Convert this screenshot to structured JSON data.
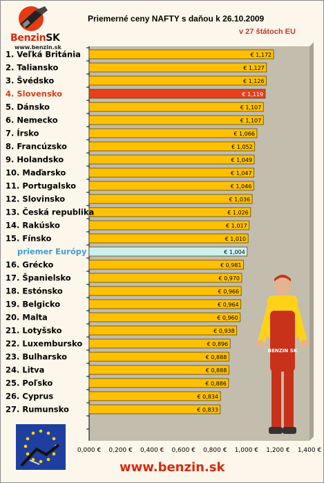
{
  "header": {
    "logo_text": "Benzin",
    "logo_suffix": "SK",
    "logo_url": "www.benzin.sk",
    "title": "Priemerné ceny NAFTY s daňou k 26.10.2009",
    "subtitle": "v 27 štátoch EU"
  },
  "footer": {
    "url": "www.benzin.sk"
  },
  "mascot": {
    "shirt_text": "BENZIN SK"
  },
  "chart_data": {
    "type": "bar",
    "orientation": "horizontal",
    "title": "Priemerné ceny NAFTY s daňou k 26.10.2009",
    "subtitle": "v 27 štátoch EU",
    "xlim": [
      0,
      1.4
    ],
    "x_ticks": [
      "0,000 €",
      "0,200 €",
      "0,400 €",
      "0,600 €",
      "0,800 €",
      "1,000 €",
      "1,200 €",
      "1,400 €"
    ],
    "grid": false,
    "categories": [
      "1. Veľká Británia",
      "2. Taliansko",
      "3. Švédsko",
      "4. Slovensko",
      "5. Dánsko",
      "6. Nemecko",
      "7. Írsko",
      "8. Francúzsko",
      "9. Holandsko",
      "10. Maďarsko",
      "11. Portugalsko",
      "12. Slovinsko",
      "13. Česká republika",
      "14. Rakúsko",
      "15. Fínsko",
      "priemer Európy",
      "16. Grécko",
      "17. Španielsko",
      "18. Estónsko",
      "19. Belgicko",
      "20. Malta",
      "21. Lotyšsko",
      "22. Luxembursko",
      "23. Bulharsko",
      "24. Litva",
      "25. Poľsko",
      "26. Cyprus",
      "27. Rumunsko"
    ],
    "values": [
      1.172,
      1.127,
      1.126,
      1.119,
      1.107,
      1.107,
      1.066,
      1.052,
      1.049,
      1.047,
      1.046,
      1.036,
      1.026,
      1.017,
      1.01,
      1.004,
      0.981,
      0.97,
      0.966,
      0.964,
      0.96,
      0.938,
      0.896,
      0.888,
      0.888,
      0.886,
      0.834,
      0.833
    ],
    "value_labels": [
      "€ 1,172",
      "€ 1,127",
      "€ 1,126",
      "€ 1,119",
      "€ 1,107",
      "€ 1,107",
      "€ 1,066",
      "€ 1,052",
      "€ 1,049",
      "€ 1,047",
      "€ 1,046",
      "€ 1,036",
      "€ 1,026",
      "€ 1,017",
      "€ 1,010",
      "€ 1,004",
      "€ 0,981",
      "€ 0,970",
      "€ 0,966",
      "€ 0,964",
      "€ 0,960",
      "€ 0,938",
      "€ 0,896",
      "€ 0,888",
      "€ 0,888",
      "€ 0,886",
      "€ 0,834",
      "€ 0,833"
    ],
    "highlight_index": 3,
    "average_index": 15,
    "colors": {
      "bar": "#ffc000",
      "highlight_bar": "#e8401c",
      "average_bar": "#ccf2ee",
      "plot_background": "#c3bdad",
      "highlight_label": "#d2401c",
      "average_label": "#3ba0d8"
    }
  }
}
